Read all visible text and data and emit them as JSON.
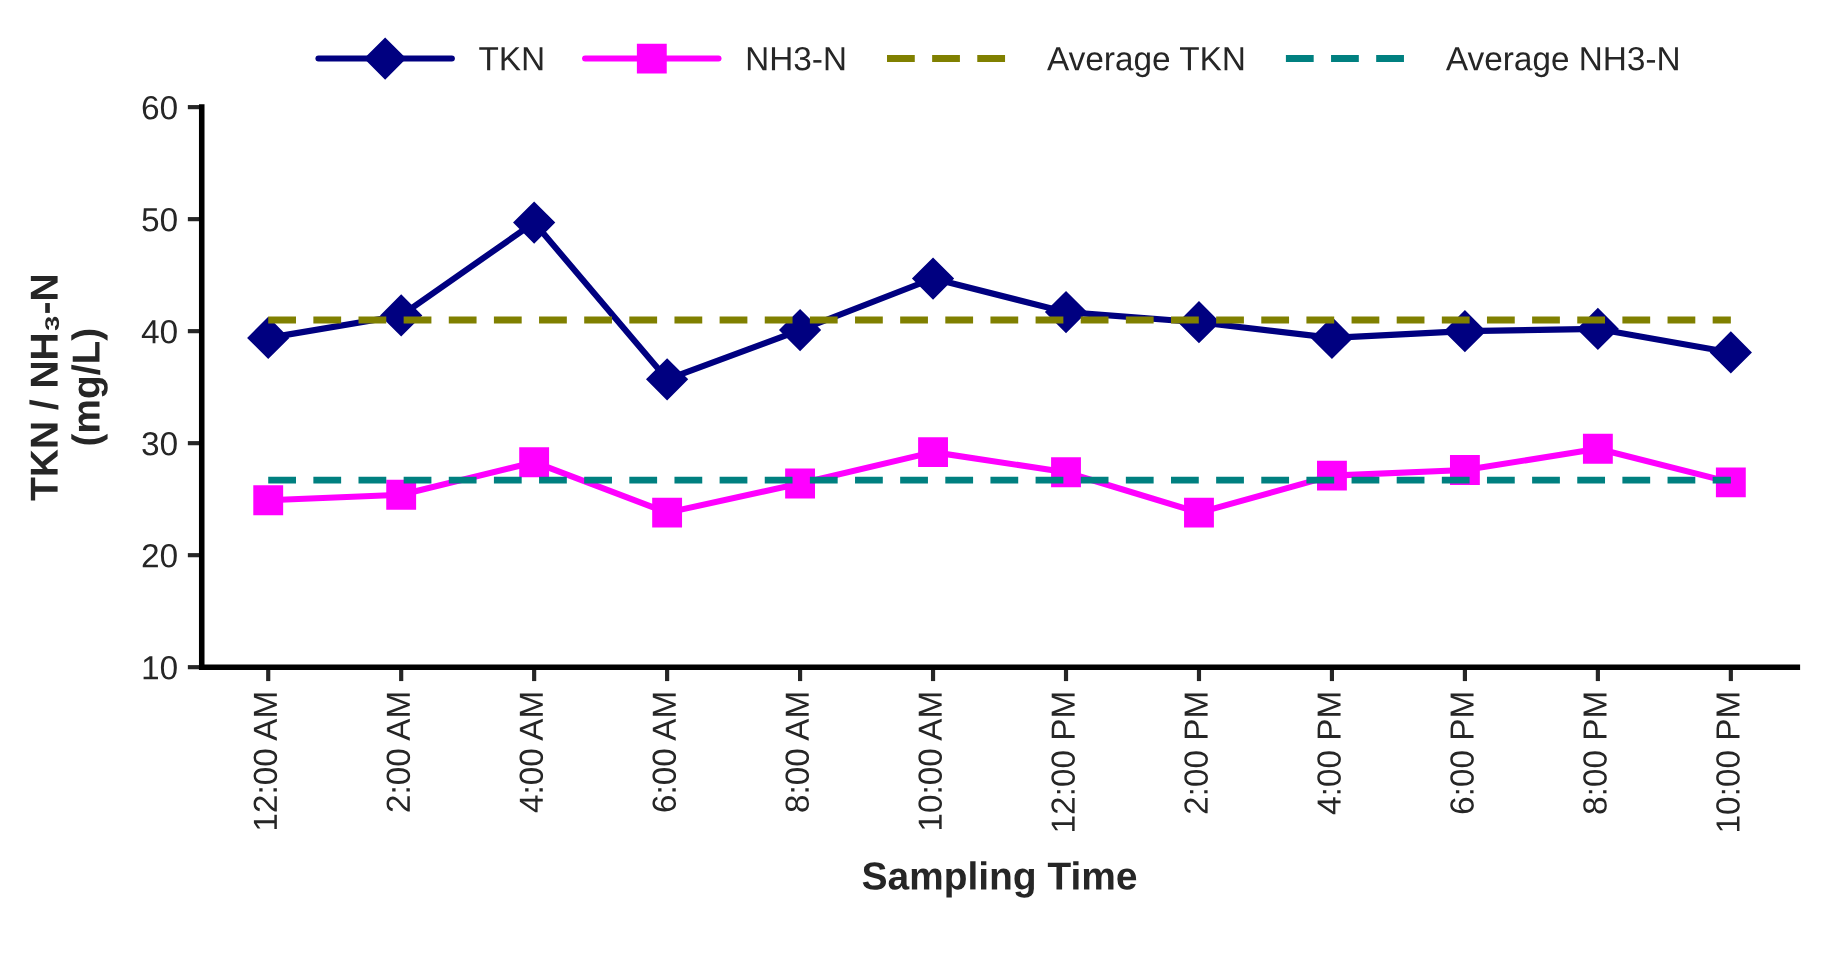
{
  "chart_data": {
    "type": "line",
    "xlabel": "Sampling Time",
    "ylabel": "TKN / NH₃-N\n(mg/L)",
    "categories": [
      "12:00 AM",
      "2:00 AM",
      "4:00 AM",
      "6:00 AM",
      "8:00 AM",
      "10:00 AM",
      "12:00 PM",
      "2:00 PM",
      "4:00 PM",
      "6:00 PM",
      "8:00 PM",
      "10:00 PM"
    ],
    "series": [
      {
        "name": "TKN",
        "color": "#000080",
        "marker": "diamond",
        "line_style": "solid",
        "values": [
          39.4,
          41.4,
          49.7,
          35.7,
          40.1,
          44.7,
          41.7,
          40.8,
          39.4,
          40.0,
          40.2,
          38.1
        ]
      },
      {
        "name": "NH3-N",
        "color": "#ff00ff",
        "marker": "square",
        "line_style": "solid",
        "values": [
          24.9,
          25.4,
          28.3,
          23.8,
          26.4,
          29.2,
          27.4,
          23.8,
          27.1,
          27.6,
          29.5,
          26.5
        ]
      },
      {
        "name": "Average TKN",
        "color": "#808000",
        "marker": "none",
        "line_style": "dashed",
        "values": [
          41.0,
          41.0,
          41.0,
          41.0,
          41.0,
          41.0,
          41.0,
          41.0,
          41.0,
          41.0,
          41.0,
          41.0
        ]
      },
      {
        "name": "Average NH3-N",
        "color": "#008080",
        "marker": "none",
        "line_style": "dashed",
        "values": [
          26.7,
          26.7,
          26.7,
          26.7,
          26.7,
          26.7,
          26.7,
          26.7,
          26.7,
          26.7,
          26.7,
          26.7
        ]
      }
    ],
    "ylim": [
      10,
      60
    ],
    "yticks": [
      10,
      20,
      30,
      40,
      50,
      60
    ],
    "grid": false,
    "legend": "top"
  }
}
